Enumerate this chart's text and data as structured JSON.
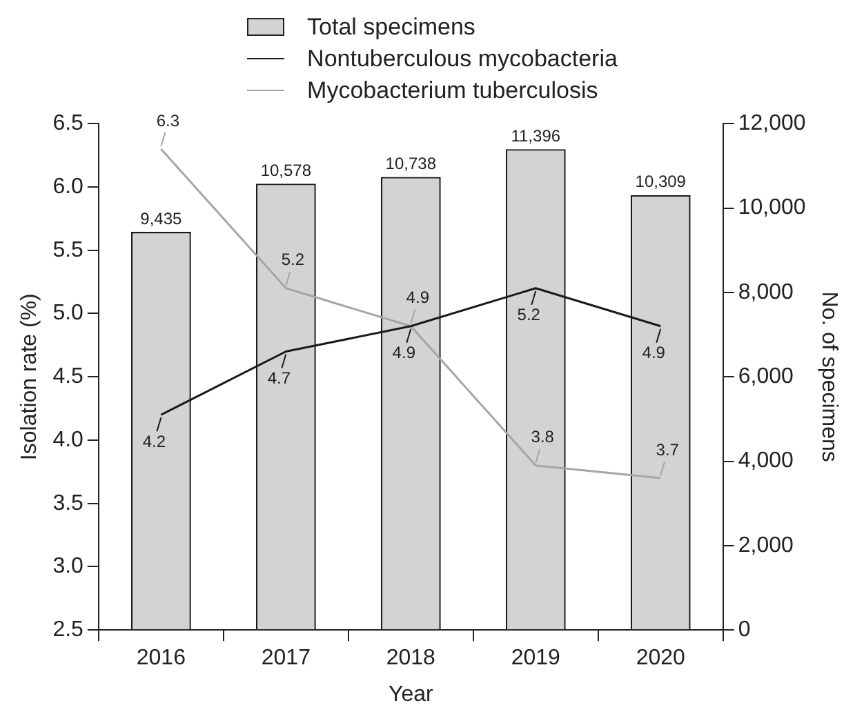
{
  "chart_data": {
    "type": "bar",
    "categories": [
      "2016",
      "2017",
      "2018",
      "2019",
      "2020"
    ],
    "xlabel": "Year",
    "ylabel": "Isolation rate (%)",
    "y2label": "No. of specimens",
    "ylim": [
      2.5,
      6.5
    ],
    "yticks": [
      {
        "value": 2.5,
        "label": "2.5"
      },
      {
        "value": 3,
        "label": "3.0"
      },
      {
        "value": 3.5,
        "label": "3.5"
      },
      {
        "value": 4,
        "label": "4.0"
      },
      {
        "value": 4.5,
        "label": "4.5"
      },
      {
        "value": 5,
        "label": "5.0"
      },
      {
        "value": 5.5,
        "label": "5.5"
      },
      {
        "value": 6,
        "label": "6.0"
      },
      {
        "value": 6.5,
        "label": "6.5"
      }
    ],
    "y2lim": [
      0,
      12000
    ],
    "y2ticks": [
      0,
      {
        "value": 2000,
        "label": "2,000"
      },
      {
        "value": 4000,
        "label": "4,000"
      },
      {
        "value": 6000,
        "label": "6,000"
      },
      {
        "value": 8000,
        "label": "8,000"
      },
      {
        "value": 10000,
        "label": "10,000"
      },
      {
        "value": 12000,
        "label": "12,000"
      }
    ],
    "series": [
      {
        "name": "Total specimens",
        "axis": "y2",
        "color": "#d3d3d5",
        "values": [
          9435,
          10578,
          10738,
          11396,
          10309
        ],
        "value_labels": [
          "9,435",
          "10,578",
          "10,738",
          "11,396",
          "10,309"
        ]
      },
      {
        "name": "Nontuberculous mycobacteria",
        "type": "line",
        "color": "#1a1a1a",
        "values": [
          4.2,
          4.7,
          4.9,
          5.2,
          4.9
        ],
        "value_labels": [
          "4.2",
          "4.7",
          "4.9",
          "5.2",
          "4.9"
        ]
      },
      {
        "name": "Mycobacterium tuberculosis",
        "type": "line",
        "color": "#a6a6a6",
        "values": [
          6.3,
          5.2,
          4.9,
          3.8,
          3.7
        ],
        "value_labels": [
          "6.3",
          "5.2",
          "4.9",
          "3.8",
          "3.7"
        ]
      }
    ],
    "legend": "top",
    "grid": false,
    "marker": "none",
    "line_style": "solid"
  }
}
